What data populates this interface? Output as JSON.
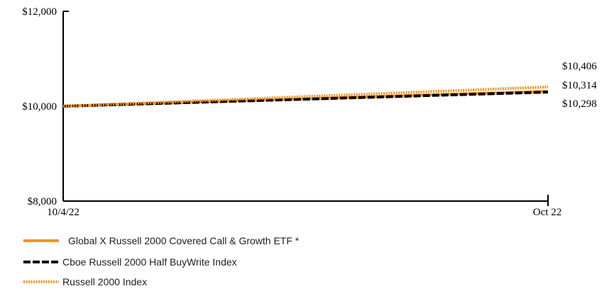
{
  "chart_data": {
    "type": "line",
    "x": [
      "10/4/22",
      "Oct 22"
    ],
    "y_ticks": [
      "$8,000",
      "$10,000",
      "$12,000"
    ],
    "ylim": [
      8000,
      12000
    ],
    "grid": false,
    "legend_position": "bottom-left",
    "series": [
      {
        "name": "Global X Russell 2000 Covered Call & Growth ETF *",
        "values": [
          10000,
          10314
        ],
        "end_label": "$10,314",
        "color": "#f7941d",
        "style": "solid"
      },
      {
        "name": "Cboe Russell 2000 Half BuyWrite Index",
        "values": [
          10000,
          10298
        ],
        "end_label": "$10,298",
        "color": "#000000",
        "style": "dashed"
      },
      {
        "name": "Russell 2000 Index",
        "values": [
          10000,
          10406
        ],
        "end_label": "$10,406",
        "color": "#f7941d",
        "style": "dotted"
      }
    ]
  }
}
